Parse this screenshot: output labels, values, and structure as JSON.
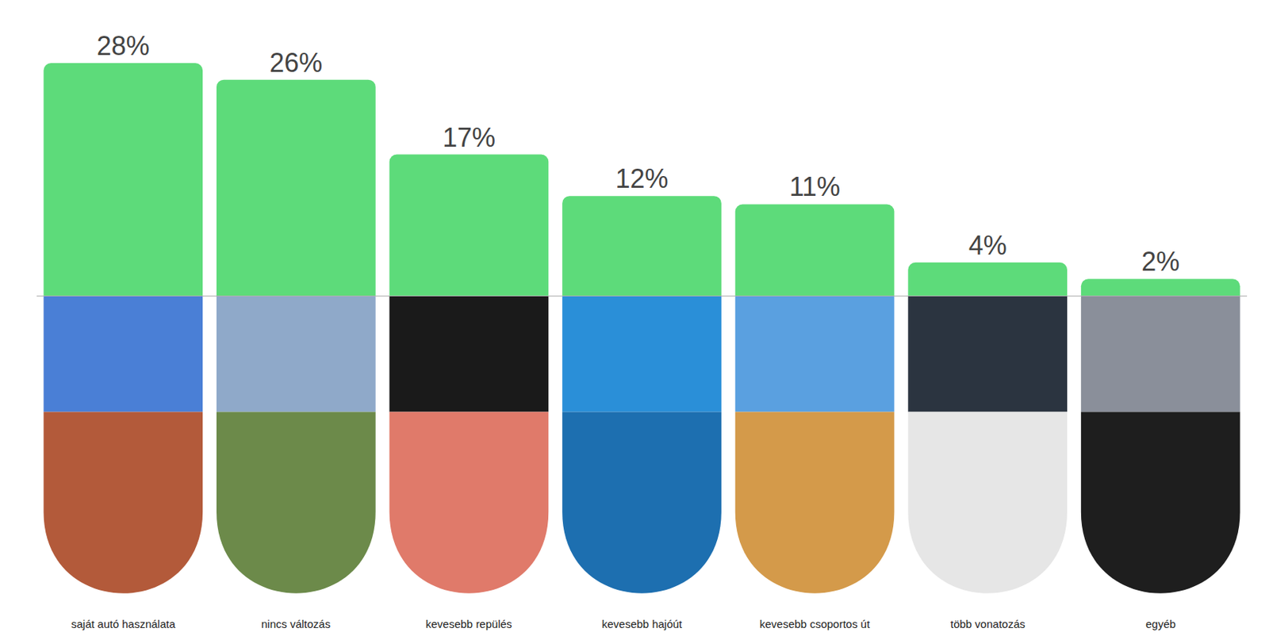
{
  "chart_data": {
    "type": "bar",
    "categories": [
      "saját autó használata",
      "nincs változás",
      "kevesebb repülés",
      "kevesebb hajóút",
      "kevesebb csoportos út",
      "több vonatozás",
      "egyéb"
    ],
    "values": [
      28,
      26,
      17,
      12,
      11,
      4,
      2
    ],
    "value_labels": [
      "28%",
      "26%",
      "17%",
      "12%",
      "11%",
      "4%",
      "2%"
    ],
    "color": "#5ddb7a",
    "ylim": [
      0,
      28
    ],
    "yticks": [],
    "grid": false,
    "data_labels": true,
    "tick_labels": false
  }
}
